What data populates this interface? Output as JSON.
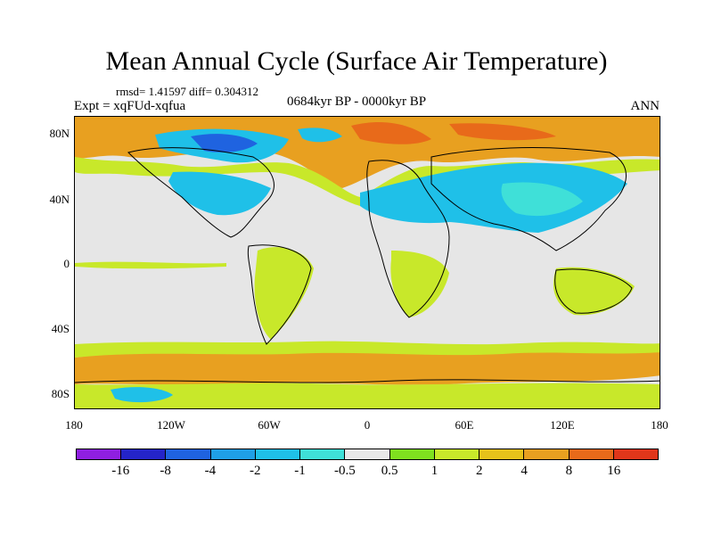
{
  "title": "Mean Annual Cycle (Surface Air Temperature)",
  "stats": "rmsd= 1.41597 diff= 0.304312",
  "experiment": "Expt = xqFUd-xqfua",
  "period": "0684kyr BP - 0000kyr BP",
  "season": "ANN",
  "map": {
    "y_tick_labels": [
      "80N",
      "40N",
      "0",
      "40S",
      "80S"
    ],
    "x_tick_labels": [
      "180",
      "120W",
      "60W",
      "0",
      "60E",
      "120E",
      "180"
    ]
  },
  "colorbar": {
    "colors": [
      "#8f1fe0",
      "#2424c9",
      "#1f63e0",
      "#1f9fe6",
      "#1fc0e8",
      "#3fe0d8",
      "#e8e8e8",
      "#7fe01f",
      "#c8e82a",
      "#e6c21a",
      "#e8a020",
      "#e86a1a",
      "#e0361a"
    ],
    "labels": [
      "-16",
      "-8",
      "-4",
      "-2",
      "-1",
      "-0.5",
      "0.5",
      "1",
      "2",
      "4",
      "8",
      "16"
    ]
  }
}
